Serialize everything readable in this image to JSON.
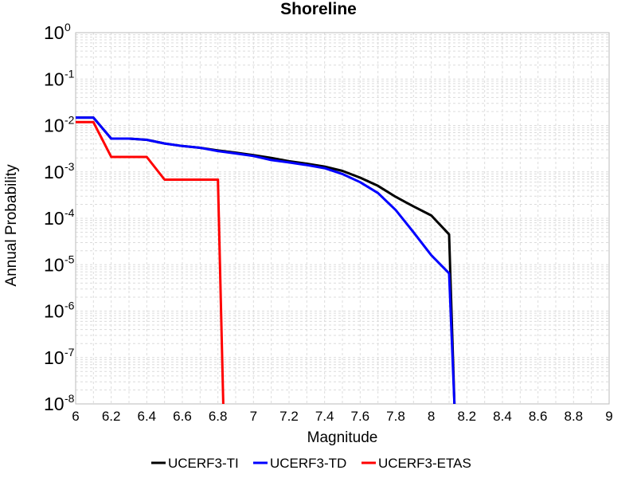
{
  "chart_data": {
    "type": "line",
    "title": "Shoreline",
    "xlabel": "Magnitude",
    "ylabel": "Annual Probability",
    "xlim": [
      6,
      9
    ],
    "ylim": [
      1e-08,
      1
    ],
    "yscale": "log",
    "grid": true,
    "legend_position": "bottom",
    "x_ticks": [
      "6",
      "6.2",
      "6.4",
      "6.6",
      "6.8",
      "7",
      "7.2",
      "7.4",
      "7.6",
      "7.8",
      "8",
      "8.2",
      "8.4",
      "8.6",
      "8.8",
      "9"
    ],
    "y_ticks": [
      {
        "base": "10",
        "exp": "0"
      },
      {
        "base": "10",
        "exp": "-1"
      },
      {
        "base": "10",
        "exp": "-2"
      },
      {
        "base": "10",
        "exp": "-3"
      },
      {
        "base": "10",
        "exp": "-4"
      },
      {
        "base": "10",
        "exp": "-5"
      },
      {
        "base": "10",
        "exp": "-6"
      },
      {
        "base": "10",
        "exp": "-7"
      },
      {
        "base": "10",
        "exp": "-8"
      }
    ],
    "series": [
      {
        "name": "UCERF3-TI",
        "color": "#000000",
        "points": [
          [
            6.0,
            0.0148
          ],
          [
            6.1,
            0.0148
          ],
          [
            6.2,
            0.0052
          ],
          [
            6.3,
            0.0052
          ],
          [
            6.4,
            0.0049
          ],
          [
            6.5,
            0.0041
          ],
          [
            6.6,
            0.0036
          ],
          [
            6.7,
            0.0033
          ],
          [
            6.8,
            0.0029
          ],
          [
            6.9,
            0.0026
          ],
          [
            7.0,
            0.0023
          ],
          [
            7.1,
            0.002
          ],
          [
            7.2,
            0.0017
          ],
          [
            7.3,
            0.0015
          ],
          [
            7.4,
            0.0013
          ],
          [
            7.5,
            0.00105
          ],
          [
            7.6,
            0.00075
          ],
          [
            7.7,
            0.0005
          ],
          [
            7.8,
            0.00029
          ],
          [
            7.9,
            0.00018
          ],
          [
            8.0,
            0.000115
          ],
          [
            8.1,
            4.5e-05
          ],
          [
            8.13,
            1e-08
          ]
        ]
      },
      {
        "name": "UCERF3-TD",
        "color": "#0000ff",
        "points": [
          [
            6.0,
            0.0148
          ],
          [
            6.1,
            0.0148
          ],
          [
            6.2,
            0.0052
          ],
          [
            6.3,
            0.0052
          ],
          [
            6.4,
            0.0049
          ],
          [
            6.5,
            0.0041
          ],
          [
            6.6,
            0.0036
          ],
          [
            6.7,
            0.0033
          ],
          [
            6.8,
            0.0028
          ],
          [
            6.9,
            0.0025
          ],
          [
            7.0,
            0.0022
          ],
          [
            7.1,
            0.0018
          ],
          [
            7.2,
            0.0016
          ],
          [
            7.3,
            0.0014
          ],
          [
            7.4,
            0.0012
          ],
          [
            7.5,
            0.0009
          ],
          [
            7.6,
            0.0006
          ],
          [
            7.7,
            0.00035
          ],
          [
            7.8,
            0.00015
          ],
          [
            7.9,
            5e-05
          ],
          [
            8.0,
            1.6e-05
          ],
          [
            8.1,
            6.5e-06
          ],
          [
            8.13,
            1e-08
          ]
        ]
      },
      {
        "name": "UCERF3-ETAS",
        "color": "#ff0000",
        "points": [
          [
            6.0,
            0.0118
          ],
          [
            6.1,
            0.0118
          ],
          [
            6.2,
            0.0021
          ],
          [
            6.3,
            0.0021
          ],
          [
            6.4,
            0.0021
          ],
          [
            6.5,
            0.00068
          ],
          [
            6.6,
            0.00068
          ],
          [
            6.7,
            0.00068
          ],
          [
            6.8,
            0.00068
          ],
          [
            6.83,
            1e-08
          ]
        ]
      }
    ]
  }
}
